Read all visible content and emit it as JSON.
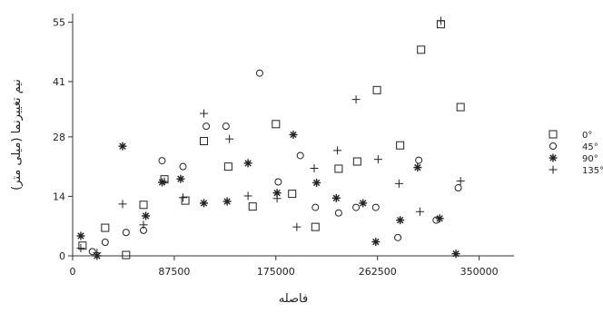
{
  "chart_data": {
    "type": "scatter",
    "xlabel": "فاصله",
    "ylabel": "نیم تغییرنما (میلی متر)",
    "xlim": [
      0,
      380000
    ],
    "ylim": [
      0,
      57
    ],
    "x_ticks": [
      0,
      87500,
      175000,
      262500,
      350000
    ],
    "x_tick_labels": [
      "0",
      "87500",
      "175000",
      "262500",
      "350000"
    ],
    "y_ticks": [
      0,
      14,
      28,
      41,
      55
    ],
    "y_tick_labels": [
      "0",
      "14",
      "28",
      "41",
      "55"
    ],
    "grid": false,
    "legend_position": "right",
    "series": [
      {
        "name": "0°",
        "marker": "square",
        "points": [
          [
            8500,
            2.4
          ],
          [
            28000,
            6.6
          ],
          [
            46000,
            0.2
          ],
          [
            61000,
            12
          ],
          [
            79000,
            18
          ],
          [
            97000,
            13
          ],
          [
            113000,
            27
          ],
          [
            134000,
            21
          ],
          [
            155000,
            11.6
          ],
          [
            175000,
            31
          ],
          [
            189000,
            14.6
          ],
          [
            209000,
            6.8
          ],
          [
            229000,
            20.5
          ],
          [
            245000,
            22.2
          ],
          [
            262000,
            39
          ],
          [
            282000,
            26
          ],
          [
            300000,
            48.5
          ],
          [
            317000,
            54.5
          ],
          [
            334000,
            35
          ]
        ]
      },
      {
        "name": "45°",
        "marker": "circle",
        "points": [
          [
            17000,
            1
          ],
          [
            28000,
            3.2
          ],
          [
            46000,
            5.5
          ],
          [
            61000,
            6
          ],
          [
            77000,
            22.4
          ],
          [
            95000,
            21
          ],
          [
            115000,
            30.5
          ],
          [
            132000,
            30.5
          ],
          [
            161000,
            43
          ],
          [
            177000,
            17.4
          ],
          [
            196000,
            23.6
          ],
          [
            209000,
            11.4
          ],
          [
            229000,
            10.1
          ],
          [
            244000,
            11.4
          ],
          [
            261000,
            11.4
          ],
          [
            280000,
            4.3
          ],
          [
            298000,
            22.5
          ],
          [
            313000,
            8.4
          ],
          [
            332000,
            16
          ]
        ]
      },
      {
        "name": "90°",
        "marker": "star",
        "points": [
          [
            7000,
            4.7
          ],
          [
            21000,
            0
          ],
          [
            43000,
            25.8
          ],
          [
            63000,
            9.4
          ],
          [
            77000,
            17.3
          ],
          [
            93000,
            18.1
          ],
          [
            113000,
            12.4
          ],
          [
            133000,
            12.8
          ],
          [
            151000,
            21.8
          ],
          [
            176000,
            14.8
          ],
          [
            190000,
            28.5
          ],
          [
            210000,
            17.2
          ],
          [
            227000,
            13.6
          ],
          [
            250000,
            12.4
          ],
          [
            261000,
            3.3
          ],
          [
            282000,
            8.4
          ],
          [
            297000,
            20.8
          ],
          [
            316000,
            8.8
          ],
          [
            330000,
            0.5
          ]
        ]
      },
      {
        "name": "135°",
        "marker": "plus",
        "points": [
          [
            7000,
            1.8
          ],
          [
            21000,
            0.7
          ],
          [
            43000,
            12.2
          ],
          [
            61000,
            7.3
          ],
          [
            79000,
            17.5
          ],
          [
            95000,
            13.7
          ],
          [
            113000,
            33.5
          ],
          [
            135000,
            27.5
          ],
          [
            151000,
            14.1
          ],
          [
            176000,
            13.5
          ],
          [
            193000,
            6.8
          ],
          [
            208000,
            20.6
          ],
          [
            228000,
            24.8
          ],
          [
            244000,
            36.8
          ],
          [
            263000,
            22.7
          ],
          [
            281000,
            17
          ],
          [
            299000,
            10.4
          ],
          [
            317000,
            55.3
          ],
          [
            334000,
            17.6
          ]
        ]
      }
    ]
  }
}
